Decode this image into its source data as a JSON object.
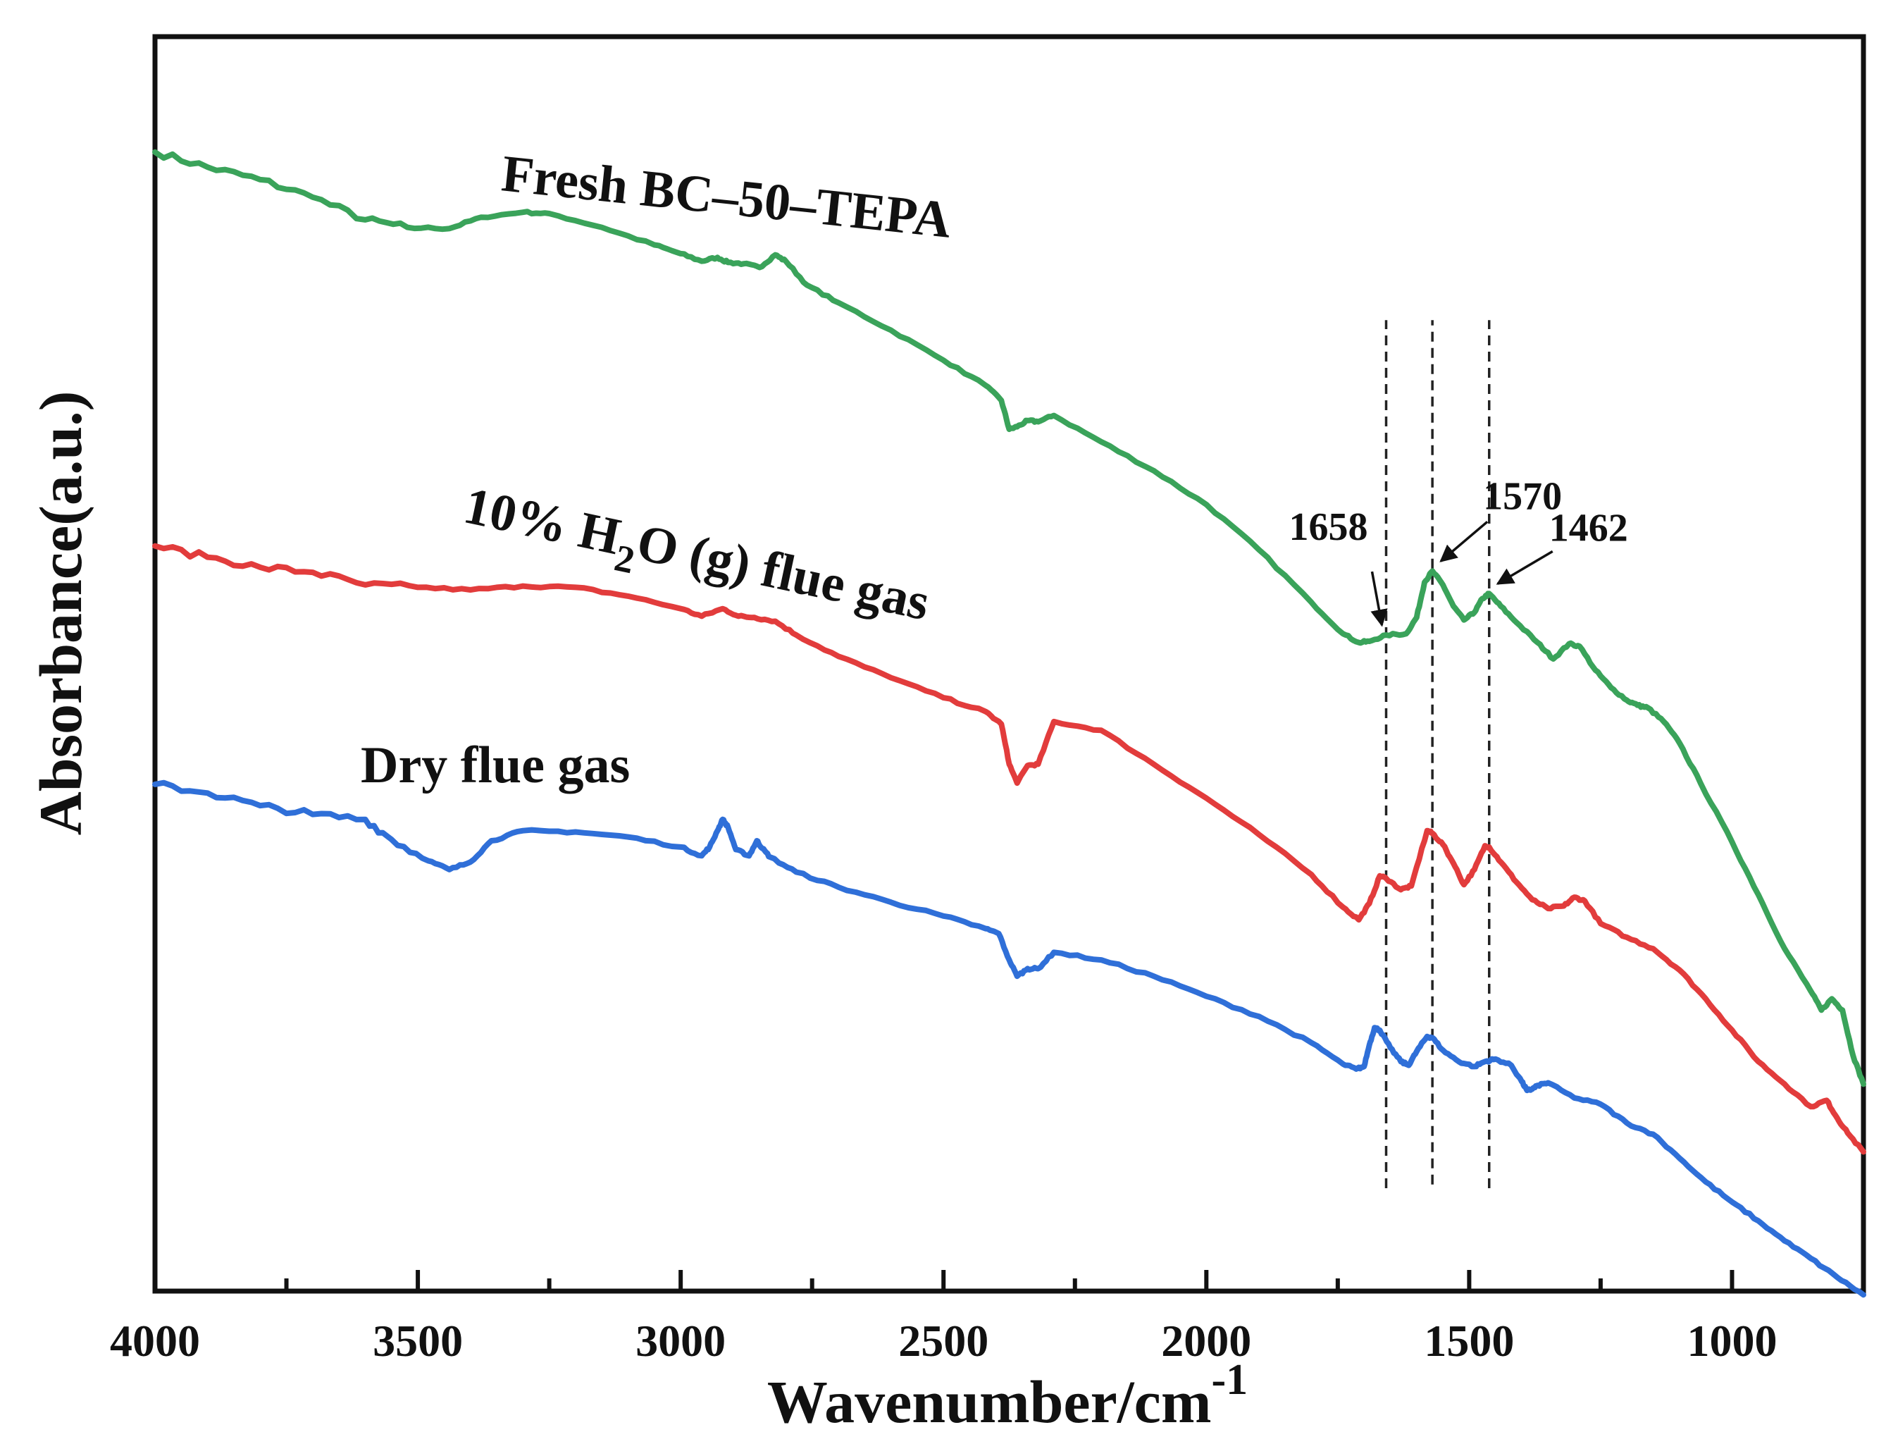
{
  "chart_data": {
    "type": "line",
    "title": "",
    "xlabel": "Wavenumber/cm",
    "xlabel_superscript": "-1",
    "ylabel": "Absorbance(a.u.)",
    "xlim": [
      4000,
      750
    ],
    "ylim": [
      0,
      100
    ],
    "x_reversed": true,
    "y_tick_labels_shown": false,
    "x_ticks": [
      4000,
      3500,
      3000,
      2500,
      2000,
      1500,
      1000
    ],
    "x_tick_labels": [
      "4000",
      "3500",
      "3000",
      "2500",
      "2000",
      "1500",
      "1000"
    ],
    "x_minor_step": 250,
    "grid": false,
    "series": [
      {
        "name": "Fresh BC-50-TEPA",
        "label_parts": [
          "Fresh BC",
          "–",
          "50",
          "–",
          "TEPA"
        ],
        "color": "#3aa35a",
        "points": [
          [
            4000,
            90.8
          ],
          [
            3900,
            89.6
          ],
          [
            3800,
            88.6
          ],
          [
            3700,
            87.2
          ],
          [
            3600,
            85.4
          ],
          [
            3520,
            84.8
          ],
          [
            3440,
            84.7
          ],
          [
            3380,
            85.6
          ],
          [
            3300,
            86.0
          ],
          [
            3250,
            85.9
          ],
          [
            3150,
            84.8
          ],
          [
            3050,
            83.4
          ],
          [
            3000,
            82.7
          ],
          [
            2960,
            82.1
          ],
          [
            2930,
            82.4
          ],
          [
            2910,
            82.0
          ],
          [
            2880,
            81.9
          ],
          [
            2850,
            81.6
          ],
          [
            2820,
            82.6
          ],
          [
            2800,
            82.1
          ],
          [
            2760,
            80.2
          ],
          [
            2700,
            78.8
          ],
          [
            2600,
            76.6
          ],
          [
            2500,
            74.2
          ],
          [
            2420,
            72.2
          ],
          [
            2390,
            71.0
          ],
          [
            2375,
            68.7
          ],
          [
            2360,
            68.9
          ],
          [
            2340,
            69.4
          ],
          [
            2320,
            69.3
          ],
          [
            2290,
            69.8
          ],
          [
            2200,
            67.7
          ],
          [
            2100,
            65.4
          ],
          [
            2000,
            62.7
          ],
          [
            1900,
            59.1
          ],
          [
            1800,
            54.9
          ],
          [
            1740,
            52.4
          ],
          [
            1710,
            51.7
          ],
          [
            1690,
            51.8
          ],
          [
            1658,
            52.3
          ],
          [
            1620,
            52.4
          ],
          [
            1600,
            53.7
          ],
          [
            1585,
            56.5
          ],
          [
            1570,
            57.4
          ],
          [
            1550,
            56.3
          ],
          [
            1530,
            54.6
          ],
          [
            1510,
            53.5
          ],
          [
            1490,
            54.1
          ],
          [
            1475,
            55.2
          ],
          [
            1462,
            55.6
          ],
          [
            1440,
            54.6
          ],
          [
            1410,
            53.3
          ],
          [
            1370,
            51.7
          ],
          [
            1340,
            50.4
          ],
          [
            1310,
            51.6
          ],
          [
            1290,
            51.4
          ],
          [
            1260,
            49.5
          ],
          [
            1230,
            48.1
          ],
          [
            1200,
            47.1
          ],
          [
            1180,
            46.7
          ],
          [
            1160,
            46.5
          ],
          [
            1130,
            45.4
          ],
          [
            1100,
            43.7
          ],
          [
            1060,
            40.5
          ],
          [
            1000,
            35.8
          ],
          [
            950,
            31.6
          ],
          [
            900,
            27.3
          ],
          [
            850,
            23.9
          ],
          [
            830,
            22.4
          ],
          [
            810,
            23.3
          ],
          [
            790,
            22.4
          ],
          [
            770,
            18.8
          ],
          [
            750,
            16.5
          ]
        ]
      },
      {
        "name": "10% H2O (g) flue gas",
        "label_parts": [
          "10% H",
          "2",
          "O (g) flue gas"
        ],
        "color": "#e23c3c",
        "points": [
          [
            4000,
            59.4
          ],
          [
            3900,
            58.5
          ],
          [
            3800,
            57.7
          ],
          [
            3700,
            57.3
          ],
          [
            3600,
            56.3
          ],
          [
            3500,
            56.1
          ],
          [
            3400,
            55.9
          ],
          [
            3300,
            56.2
          ],
          [
            3200,
            56.1
          ],
          [
            3100,
            55.4
          ],
          [
            3000,
            54.4
          ],
          [
            2960,
            53.8
          ],
          [
            2920,
            54.4
          ],
          [
            2890,
            53.8
          ],
          [
            2860,
            53.7
          ],
          [
            2820,
            53.4
          ],
          [
            2780,
            52.3
          ],
          [
            2700,
            50.6
          ],
          [
            2600,
            48.9
          ],
          [
            2500,
            47.3
          ],
          [
            2420,
            46.2
          ],
          [
            2390,
            45.2
          ],
          [
            2375,
            42.0
          ],
          [
            2360,
            40.5
          ],
          [
            2340,
            41.9
          ],
          [
            2320,
            42.0
          ],
          [
            2290,
            45.4
          ],
          [
            2200,
            44.7
          ],
          [
            2100,
            42.0
          ],
          [
            2000,
            39.3
          ],
          [
            1900,
            36.4
          ],
          [
            1800,
            33.2
          ],
          [
            1740,
            30.6
          ],
          [
            1710,
            29.6
          ],
          [
            1690,
            30.9
          ],
          [
            1670,
            33.1
          ],
          [
            1658,
            32.9
          ],
          [
            1630,
            32.0
          ],
          [
            1610,
            32.3
          ],
          [
            1580,
            36.7
          ],
          [
            1570,
            36.5
          ],
          [
            1550,
            35.6
          ],
          [
            1530,
            34.1
          ],
          [
            1510,
            32.4
          ],
          [
            1490,
            33.6
          ],
          [
            1470,
            35.5
          ],
          [
            1462,
            35.4
          ],
          [
            1440,
            34.2
          ],
          [
            1410,
            32.6
          ],
          [
            1380,
            31.2
          ],
          [
            1350,
            30.5
          ],
          [
            1320,
            30.7
          ],
          [
            1300,
            31.4
          ],
          [
            1280,
            31.1
          ],
          [
            1250,
            29.3
          ],
          [
            1200,
            28.2
          ],
          [
            1150,
            27.3
          ],
          [
            1100,
            25.6
          ],
          [
            1050,
            23.3
          ],
          [
            1000,
            20.8
          ],
          [
            950,
            18.3
          ],
          [
            900,
            16.5
          ],
          [
            850,
            14.7
          ],
          [
            820,
            15.2
          ],
          [
            800,
            13.8
          ],
          [
            780,
            12.6
          ],
          [
            750,
            11.1
          ]
        ]
      },
      {
        "name": "Dry flue gas",
        "label_parts": [
          "Dry flue gas"
        ],
        "color": "#2f6fd8",
        "points": [
          [
            4000,
            40.4
          ],
          [
            3900,
            39.7
          ],
          [
            3800,
            38.7
          ],
          [
            3700,
            38.0
          ],
          [
            3600,
            37.6
          ],
          [
            3550,
            36.0
          ],
          [
            3480,
            34.3
          ],
          [
            3440,
            33.6
          ],
          [
            3400,
            34.2
          ],
          [
            3360,
            35.9
          ],
          [
            3300,
            36.7
          ],
          [
            3200,
            36.6
          ],
          [
            3100,
            36.2
          ],
          [
            3000,
            35.4
          ],
          [
            2960,
            34.7
          ],
          [
            2945,
            35.4
          ],
          [
            2930,
            36.7
          ],
          [
            2920,
            37.6
          ],
          [
            2910,
            37.0
          ],
          [
            2895,
            35.2
          ],
          [
            2870,
            34.7
          ],
          [
            2855,
            35.9
          ],
          [
            2845,
            35.3
          ],
          [
            2830,
            34.6
          ],
          [
            2780,
            33.4
          ],
          [
            2700,
            32.2
          ],
          [
            2600,
            31.0
          ],
          [
            2500,
            29.9
          ],
          [
            2420,
            28.9
          ],
          [
            2395,
            28.5
          ],
          [
            2375,
            26.4
          ],
          [
            2360,
            25.1
          ],
          [
            2340,
            25.7
          ],
          [
            2320,
            25.7
          ],
          [
            2290,
            27.0
          ],
          [
            2200,
            26.4
          ],
          [
            2100,
            25.1
          ],
          [
            2000,
            23.5
          ],
          [
            1900,
            21.9
          ],
          [
            1800,
            19.8
          ],
          [
            1740,
            18.1
          ],
          [
            1715,
            17.7
          ],
          [
            1700,
            17.9
          ],
          [
            1690,
            19.6
          ],
          [
            1680,
            21.0
          ],
          [
            1670,
            20.8
          ],
          [
            1650,
            19.4
          ],
          [
            1630,
            18.3
          ],
          [
            1615,
            18.0
          ],
          [
            1600,
            19.1
          ],
          [
            1580,
            20.3
          ],
          [
            1570,
            20.2
          ],
          [
            1550,
            19.2
          ],
          [
            1520,
            18.3
          ],
          [
            1490,
            17.9
          ],
          [
            1470,
            18.3
          ],
          [
            1450,
            18.5
          ],
          [
            1420,
            18.0
          ],
          [
            1400,
            16.7
          ],
          [
            1390,
            16.0
          ],
          [
            1380,
            16.1
          ],
          [
            1370,
            16.4
          ],
          [
            1350,
            16.6
          ],
          [
            1300,
            15.4
          ],
          [
            1250,
            14.9
          ],
          [
            1200,
            13.4
          ],
          [
            1150,
            12.5
          ],
          [
            1100,
            10.6
          ],
          [
            1050,
            8.7
          ],
          [
            1000,
            7.1
          ],
          [
            950,
            5.6
          ],
          [
            900,
            4.0
          ],
          [
            850,
            2.6
          ],
          [
            800,
            1.1
          ],
          [
            750,
            -0.3
          ]
        ]
      }
    ],
    "reference_lines": [
      {
        "x": 1658,
        "y_from": 8.2,
        "y_to": 77.4,
        "style": "dashed"
      },
      {
        "x": 1570,
        "y_from": 8.5,
        "y_to": 77.4,
        "style": "dashed"
      },
      {
        "x": 1462,
        "y_from": 8.2,
        "y_to": 77.4,
        "style": "dashed"
      }
    ],
    "annotations": [
      {
        "text": "1658",
        "x": 1658,
        "y": 52.3
      },
      {
        "text": "1570",
        "x": 1570,
        "y": 57.4
      },
      {
        "text": "1462",
        "x": 1462,
        "y": 55.6
      }
    ]
  }
}
